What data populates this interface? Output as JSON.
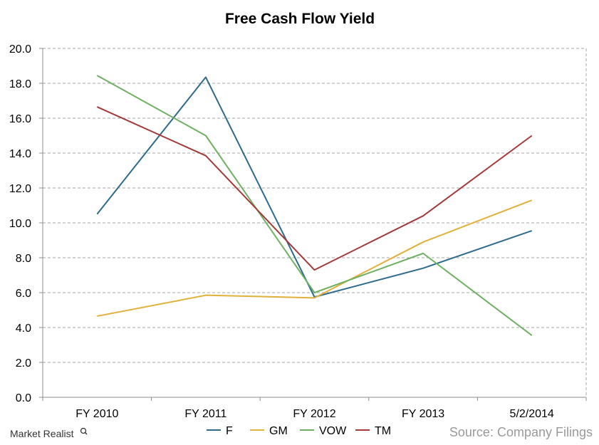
{
  "chart_data": {
    "type": "line",
    "title": "Free Cash Flow Yield",
    "categories": [
      "FY 2010",
      "FY 2011",
      "FY 2012",
      "FY 2013",
      "5/2/2014"
    ],
    "ylim": [
      0,
      20
    ],
    "yticks": [
      "0.0",
      "2.0",
      "4.0",
      "6.0",
      "8.0",
      "10.0",
      "12.0",
      "14.0",
      "16.0",
      "18.0",
      "20.0"
    ],
    "grid": true,
    "legend_position": "bottom",
    "series": [
      {
        "name": "F",
        "color": "#2e6a8e",
        "values": [
          10.5,
          18.35,
          5.75,
          7.4,
          9.55
        ]
      },
      {
        "name": "GM",
        "color": "#e0b03a",
        "values": [
          4.65,
          5.85,
          5.7,
          8.9,
          11.3
        ]
      },
      {
        "name": "VOW",
        "color": "#6fb063",
        "values": [
          18.45,
          15.0,
          6.0,
          8.25,
          3.55
        ]
      },
      {
        "name": "TM",
        "color": "#a33a3a",
        "values": [
          16.65,
          13.85,
          7.3,
          10.4,
          15.0
        ]
      }
    ]
  },
  "footer": {
    "source": "Source: Company Filings",
    "brand": "Market Realist",
    "brand_icon": "magnifier-icon"
  }
}
